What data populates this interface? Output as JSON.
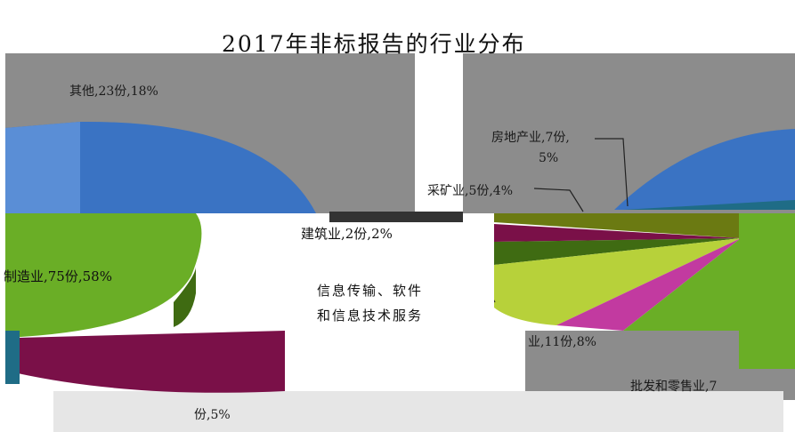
{
  "chart_data": {
    "type": "pie",
    "title": "2017年非标报告的行业分布",
    "three_d": true,
    "exploded_pie_of_pie": true,
    "colors": {
      "bg_gray": "#8c8c8c",
      "blue": "#3a73c3",
      "green": "#6aae26",
      "olive": "#6b7a12",
      "magenta": "#7a1048",
      "pink": "#c23aa0",
      "lime": "#b7d13a",
      "teal": "#1f6c86",
      "leader": "#222222"
    },
    "labels": {
      "other": "其他,23份,18%",
      "manufacturing": "制造业,75份,58%",
      "realestate_1": "房地产业,7份,",
      "realestate_2": "5%",
      "mining": "采矿业,5份,4%",
      "construction": "建筑业,2份,2%",
      "it_1": "信息传输、软件",
      "it_2": "和信息技术服务",
      "it_3": "份,5%",
      "small_1": "业,11份,8%",
      "small_2": "批发和零售业,7"
    }
  }
}
